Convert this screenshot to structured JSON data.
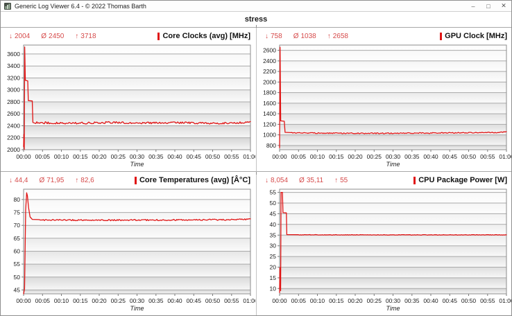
{
  "window": {
    "title": "Generic Log Viewer 6.4 - © 2022 Thomas Barth",
    "controls": {
      "minimize": "–",
      "maximize": "□",
      "close": "✕"
    }
  },
  "header": {
    "profile_label": "stress"
  },
  "stats_glyphs": {
    "min": "↓",
    "avg": "Ø",
    "max": "↑"
  },
  "colors": {
    "accent_red": "#e01414",
    "stats_red": "#d64a4a"
  },
  "chart_data": {
    "type": "line",
    "xlabel": "Time",
    "x_ticks": [
      "00:00",
      "00:05",
      "00:10",
      "00:15",
      "00:20",
      "00:25",
      "00:30",
      "00:35",
      "00:40",
      "00:45",
      "00:50",
      "00:55",
      "01:00"
    ],
    "x_range_minutes": [
      0,
      60
    ],
    "charts": [
      {
        "title": "Core Clocks (avg) [MHz]",
        "stats": {
          "min": "2004",
          "avg": "2450",
          "max": "3718"
        },
        "y_ticks": [
          2000,
          2200,
          2400,
          2600,
          2800,
          3000,
          3200,
          3400,
          3600
        ],
        "y_range": [
          2000,
          3750
        ],
        "line_color": "#e01414",
        "points": [
          [
            0,
            2050,
            0
          ],
          [
            0.08,
            2300,
            80
          ],
          [
            0.18,
            2004,
            0
          ],
          [
            0.3,
            3718,
            0
          ],
          [
            0.45,
            3160,
            0
          ],
          [
            1.1,
            3150,
            0
          ],
          [
            1.25,
            2820,
            0
          ],
          [
            2.3,
            2815,
            0
          ],
          [
            2.45,
            2455,
            0
          ],
          [
            3,
            2455,
            18
          ],
          [
            12,
            2440,
            16
          ],
          [
            22,
            2455,
            16
          ],
          [
            32,
            2445,
            16
          ],
          [
            42,
            2450,
            16
          ],
          [
            52,
            2442,
            16
          ],
          [
            58,
            2452,
            14
          ],
          [
            59.5,
            2458,
            0
          ],
          [
            60,
            2470,
            0
          ]
        ]
      },
      {
        "title": "GPU Clock [MHz]",
        "stats": {
          "min": "758",
          "avg": "1038",
          "max": "2658"
        },
        "y_ticks": [
          800,
          1000,
          1200,
          1400,
          1600,
          1800,
          2000,
          2200,
          2400,
          2600
        ],
        "y_range": [
          720,
          2700
        ],
        "line_color": "#e01414",
        "points": [
          [
            0,
            758,
            0
          ],
          [
            0.12,
            2658,
            0
          ],
          [
            0.3,
            1265,
            0
          ],
          [
            1.25,
            1255,
            6
          ],
          [
            1.45,
            1048,
            0
          ],
          [
            3,
            1040,
            9
          ],
          [
            15,
            1032,
            9
          ],
          [
            30,
            1030,
            9
          ],
          [
            45,
            1038,
            9
          ],
          [
            57,
            1045,
            9
          ],
          [
            59,
            1052,
            6
          ],
          [
            60,
            1062,
            0
          ]
        ]
      },
      {
        "title": "Core Temperatures (avg) [Â°C]",
        "stats": {
          "min": "44,4",
          "avg": "71,95",
          "max": "82,6"
        },
        "y_ticks": [
          45,
          50,
          55,
          60,
          65,
          70,
          75,
          80
        ],
        "y_range": [
          43.5,
          84
        ],
        "line_color": "#e01414",
        "points": [
          [
            0,
            44.4,
            1.2
          ],
          [
            0.25,
            45.5,
            0
          ],
          [
            0.55,
            76,
            0
          ],
          [
            0.8,
            82.6,
            0
          ],
          [
            1.0,
            81.5,
            0
          ],
          [
            1.3,
            77,
            0
          ],
          [
            1.7,
            73.3,
            0
          ],
          [
            2.3,
            72.3,
            0
          ],
          [
            4,
            72.1,
            0.25
          ],
          [
            20,
            72.0,
            0.25
          ],
          [
            40,
            72.1,
            0.25
          ],
          [
            55,
            72.2,
            0.25
          ],
          [
            59,
            72.3,
            0.2
          ],
          [
            60,
            72.5,
            0
          ]
        ]
      },
      {
        "title": "CPU Package Power [W]",
        "stats": {
          "min": "8,054",
          "avg": "35,11",
          "max": "55"
        },
        "y_ticks": [
          10,
          15,
          20,
          25,
          30,
          35,
          40,
          45,
          50,
          55
        ],
        "y_range": [
          7.5,
          56.5
        ],
        "line_color": "#e01414",
        "points": [
          [
            0,
            8.054,
            0
          ],
          [
            0.08,
            16,
            4
          ],
          [
            0.28,
            9,
            0
          ],
          [
            0.38,
            55,
            0
          ],
          [
            0.75,
            55,
            0
          ],
          [
            0.9,
            45.5,
            0
          ],
          [
            1.8,
            45.4,
            0
          ],
          [
            1.9,
            35.2,
            0
          ],
          [
            5,
            35.12,
            0.12
          ],
          [
            30,
            35.1,
            0.12
          ],
          [
            55,
            35.1,
            0.12
          ],
          [
            60,
            35.1,
            0
          ]
        ]
      }
    ]
  }
}
